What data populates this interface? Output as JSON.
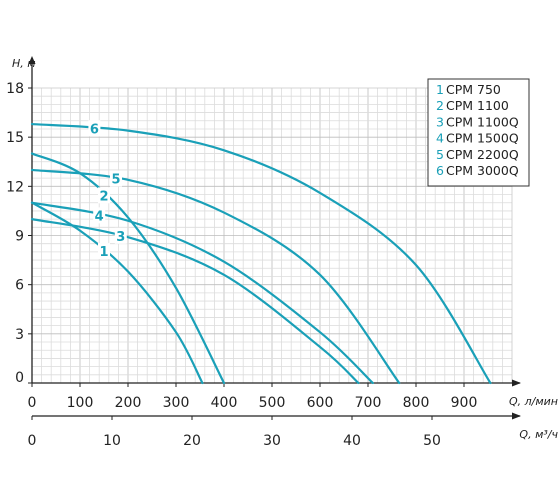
{
  "chart_data": {
    "type": "line",
    "ylabel": "H, м",
    "xlabel_primary": "Q, л/мин",
    "xlabel_secondary": "Q, м³/ч",
    "ylim": [
      0,
      18
    ],
    "xlim": [
      0,
      1000
    ],
    "yticks": [
      "0",
      "3",
      "6",
      "9",
      "12",
      "15",
      "18"
    ],
    "xticks_primary": [
      "0",
      "100",
      "200",
      "300",
      "400",
      "500",
      "600",
      "700",
      "800",
      "900"
    ],
    "xticks_secondary": [
      "0",
      "10",
      "20",
      "30",
      "40",
      "50"
    ],
    "grid": true,
    "legend_position": "top-right",
    "series_color": "#1aa0b8",
    "series": [
      {
        "id": "1",
        "name": "CPM 750",
        "x": [
          0,
          100,
          200,
          300,
          355
        ],
        "y": [
          11,
          9.3,
          6.8,
          3.1,
          0
        ]
      },
      {
        "id": "2",
        "name": "CPM 1100",
        "x": [
          0,
          100,
          200,
          300,
          400
        ],
        "y": [
          14,
          12.8,
          10.1,
          5.8,
          0
        ]
      },
      {
        "id": "3",
        "name": "CPM 1100Q",
        "x": [
          0,
          200,
          400,
          600,
          680
        ],
        "y": [
          10,
          8.9,
          6.6,
          2.2,
          0
        ]
      },
      {
        "id": "4",
        "name": "CPM 1500Q",
        "x": [
          0,
          200,
          400,
          600,
          710
        ],
        "y": [
          11,
          9.9,
          7.4,
          3.1,
          0
        ]
      },
      {
        "id": "5",
        "name": "CPM 2200Q",
        "x": [
          0,
          200,
          400,
          600,
          765
        ],
        "y": [
          13,
          12.4,
          10.4,
          6.6,
          0
        ]
      },
      {
        "id": "6",
        "name": "CPM 3000Q",
        "x": [
          0,
          200,
          400,
          600,
          800,
          955
        ],
        "y": [
          15.8,
          15.4,
          14.2,
          11.6,
          7.2,
          0
        ]
      }
    ],
    "curve_labels": [
      {
        "series": "1",
        "text": "1",
        "x": 150
      },
      {
        "series": "2",
        "text": "2",
        "x": 150
      },
      {
        "series": "3",
        "text": "3",
        "x": 185
      },
      {
        "series": "4",
        "text": "4",
        "x": 140
      },
      {
        "series": "5",
        "text": "5",
        "x": 175
      },
      {
        "series": "6",
        "text": "6",
        "x": 130
      }
    ]
  }
}
